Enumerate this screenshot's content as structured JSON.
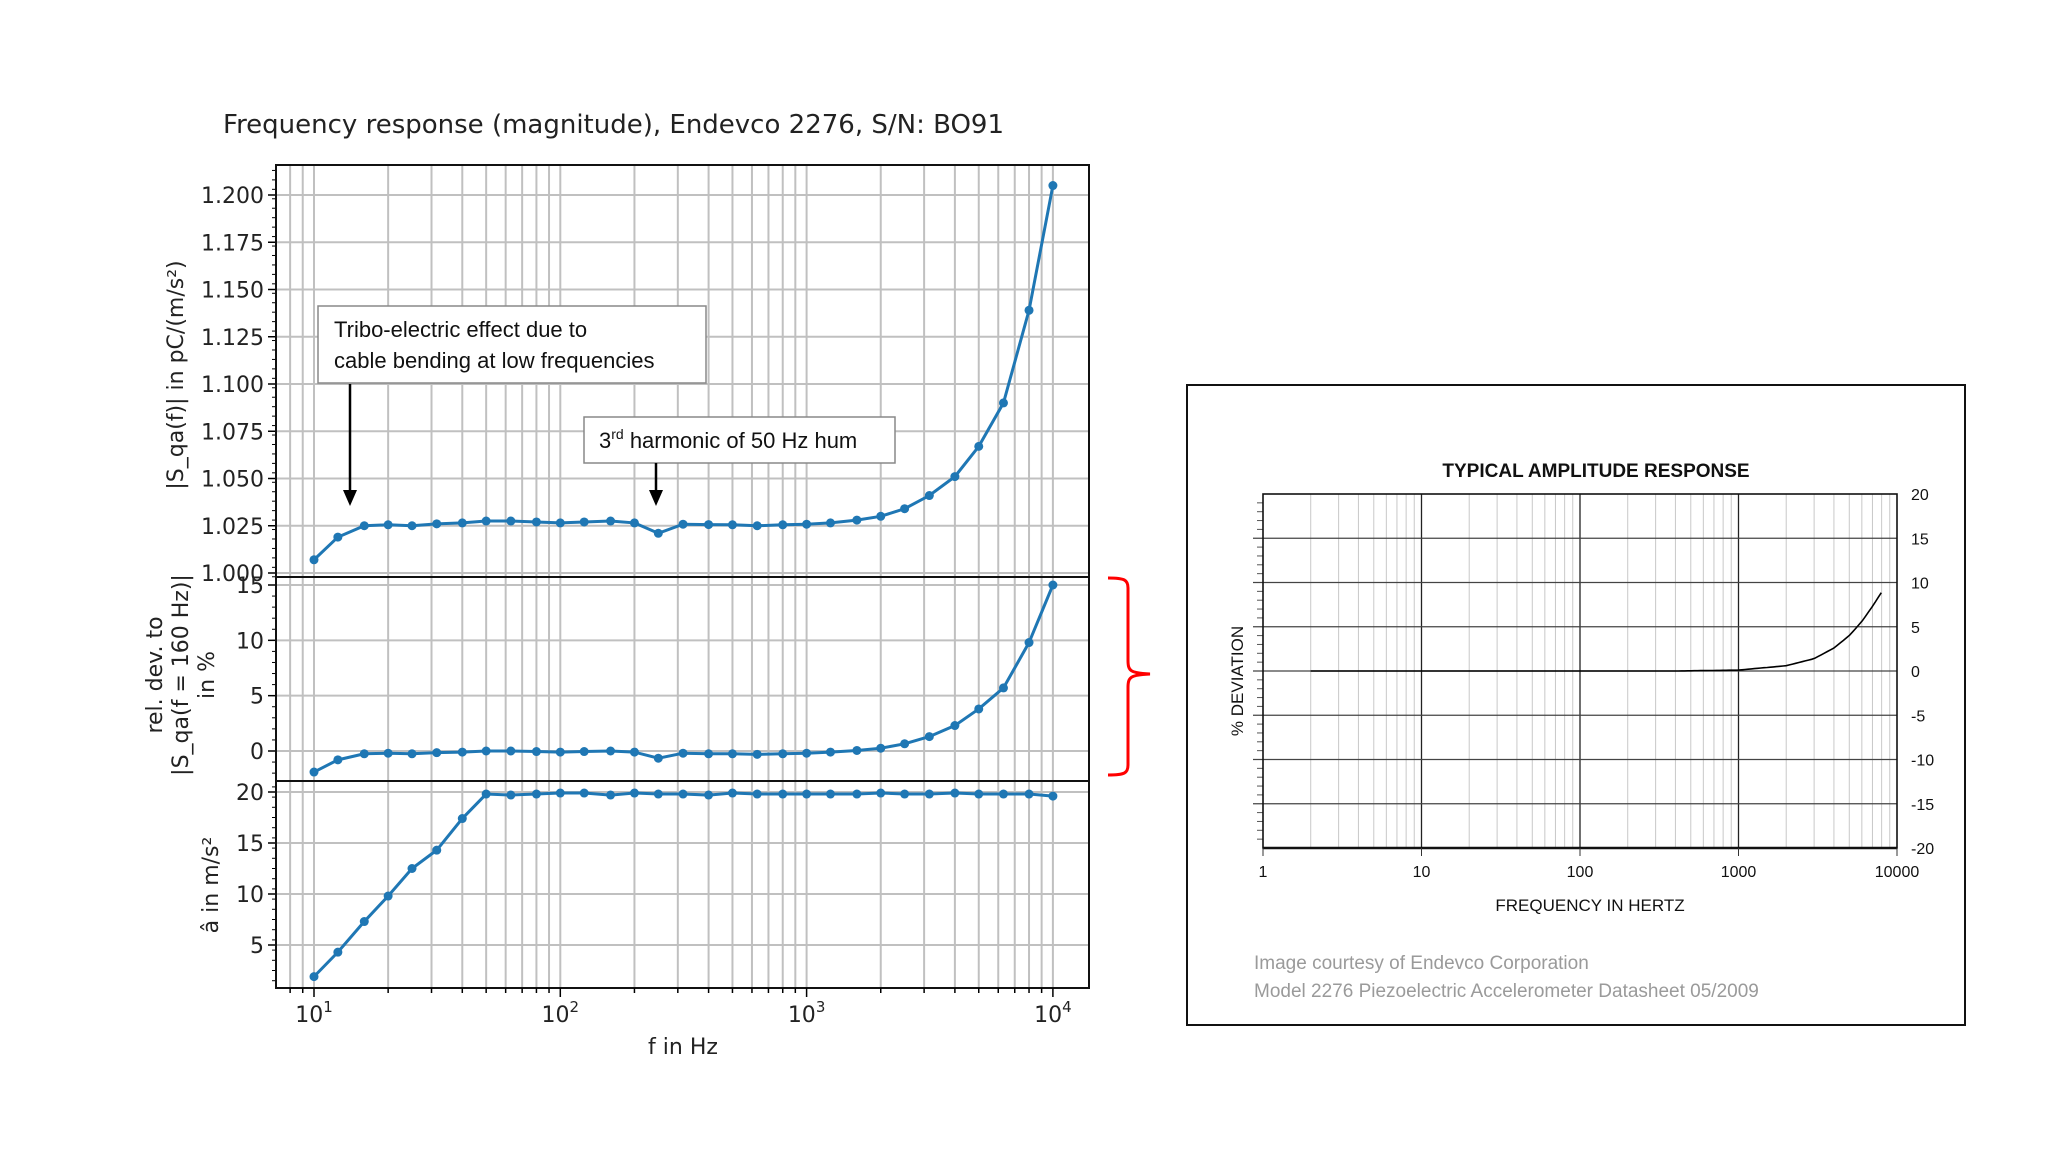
{
  "left_figure": {
    "title": "Frequency response (magnitude), Endevco 2276, S/N: BO91",
    "xlabel": "f in Hz",
    "xticks": [
      "10",
      "1",
      "10",
      "2",
      "10",
      "3",
      "10",
      "4"
    ],
    "xtick_labels": [
      {
        "base": "10",
        "exp": "1"
      },
      {
        "base": "10",
        "exp": "2"
      },
      {
        "base": "10",
        "exp": "3"
      },
      {
        "base": "10",
        "exp": "4"
      }
    ],
    "panel1": {
      "ylabel": "|S_qa(f)| in pC/(m/s²)",
      "yticks": [
        "1.000",
        "1.025",
        "1.050",
        "1.075",
        "1.100",
        "1.125",
        "1.150",
        "1.175",
        "1.200"
      ]
    },
    "panel2": {
      "ylabel_line1": "rel. dev. to",
      "ylabel_line2": "|S_qa(f = 160 Hz)|",
      "ylabel_line3": "in %",
      "yticks": [
        "0",
        "5",
        "10",
        "15"
      ]
    },
    "panel3": {
      "ylabel": "â in m/s²",
      "yticks": [
        "5",
        "10",
        "15",
        "20"
      ]
    },
    "annotation1": {
      "line1": "Tribo-electric effect due to",
      "line2": "cable bending at low frequencies"
    },
    "annotation2": {
      "prefix": "3",
      "sup": "rd",
      "suffix": " harmonic of 50 Hz hum"
    },
    "line_color": "#1f77b4",
    "bracket_color": "#ff0000"
  },
  "right_figure": {
    "title": "TYPICAL AMPLITUDE RESPONSE",
    "ylabel": "% DEVIATION",
    "xlabel": "FREQUENCY IN HERTZ",
    "xticks": [
      "1",
      "10",
      "100",
      "1000",
      "10000"
    ],
    "yticks": [
      "20",
      "15",
      "10",
      "5",
      "0",
      "-5",
      "-10",
      "-15",
      "-20"
    ],
    "credit_line1": "Image courtesy of Endevco Corporation",
    "credit_line2": "Model 2276 Piezoelectric Accelerometer Datasheet 05/2009"
  },
  "chart_data": [
    {
      "type": "line",
      "title": "Frequency response (magnitude), Endevco 2276, S/N: BO91",
      "xlabel": "f in Hz",
      "ylabel": "|S_qa(f)| in pC/(m/s²)",
      "xscale": "log",
      "ylim": [
        1.0,
        1.21
      ],
      "grid": true,
      "x": [
        10,
        12.5,
        16,
        20,
        25,
        31.5,
        40,
        50,
        63,
        80,
        100,
        125,
        160,
        200,
        250,
        315,
        400,
        500,
        630,
        800,
        1000,
        1250,
        1600,
        2000,
        2500,
        3150,
        4000,
        5000,
        6300,
        8000,
        10000
      ],
      "series": [
        {
          "name": "|S_qa(f)|",
          "values": [
            1.007,
            1.019,
            1.025,
            1.0255,
            1.025,
            1.026,
            1.0265,
            1.0275,
            1.0275,
            1.027,
            1.0265,
            1.027,
            1.0275,
            1.0265,
            1.021,
            1.0258,
            1.0256,
            1.0255,
            1.025,
            1.0255,
            1.0258,
            1.0265,
            1.028,
            1.03,
            1.034,
            1.041,
            1.051,
            1.067,
            1.09,
            1.139,
            1.205
          ]
        }
      ],
      "annotations": [
        "Tribo-electric effect due to cable bending at low frequencies (arrow at ~14 Hz)",
        "3rd harmonic of 50 Hz hum (arrow at ~250 Hz)"
      ]
    },
    {
      "type": "line",
      "xlabel": "f in Hz",
      "ylabel": "rel. dev. to |S_qa(f = 160 Hz)| in %",
      "xscale": "log",
      "ylim": [
        -2,
        15.5
      ],
      "grid": true,
      "x": [
        10,
        12.5,
        16,
        20,
        25,
        31.5,
        40,
        50,
        63,
        80,
        100,
        125,
        160,
        200,
        250,
        315,
        400,
        500,
        630,
        800,
        1000,
        1250,
        1600,
        2000,
        2500,
        3150,
        4000,
        5000,
        6300,
        8000,
        10000
      ],
      "series": [
        {
          "name": "relative deviation %",
          "values": [
            -1.9,
            -0.8,
            -0.25,
            -0.2,
            -0.25,
            -0.15,
            -0.1,
            0.0,
            0.0,
            -0.05,
            -0.1,
            -0.05,
            0.0,
            -0.1,
            -0.65,
            -0.2,
            -0.25,
            -0.25,
            -0.3,
            -0.25,
            -0.2,
            -0.1,
            0.05,
            0.25,
            0.65,
            1.3,
            2.3,
            3.8,
            5.7,
            9.8,
            15.0
          ]
        }
      ]
    },
    {
      "type": "line",
      "xlabel": "f in Hz",
      "ylabel": "â in m/s²",
      "xscale": "log",
      "ylim": [
        1,
        21
      ],
      "grid": true,
      "x": [
        10,
        12.5,
        16,
        20,
        25,
        31.5,
        40,
        50,
        63,
        80,
        100,
        125,
        160,
        200,
        250,
        315,
        400,
        500,
        630,
        800,
        1000,
        1250,
        1600,
        2000,
        2500,
        3150,
        4000,
        5000,
        6300,
        8000,
        10000
      ],
      "series": [
        {
          "name": "acceleration amplitude",
          "values": [
            1.9,
            4.3,
            7.3,
            9.8,
            12.5,
            14.3,
            17.4,
            19.8,
            19.7,
            19.8,
            19.9,
            19.9,
            19.7,
            19.9,
            19.8,
            19.8,
            19.7,
            19.9,
            19.8,
            19.8,
            19.8,
            19.8,
            19.8,
            19.9,
            19.8,
            19.8,
            19.9,
            19.8,
            19.8,
            19.8,
            19.6
          ]
        }
      ]
    },
    {
      "type": "line",
      "title": "TYPICAL AMPLITUDE RESPONSE",
      "xlabel": "FREQUENCY IN HERTZ",
      "ylabel": "% DEVIATION",
      "xscale": "log",
      "xlim": [
        1,
        10000
      ],
      "ylim": [
        -20,
        20
      ],
      "grid": true,
      "x": [
        2,
        10,
        100,
        400,
        1000,
        2000,
        3000,
        4000,
        5000,
        6000,
        7000,
        8000
      ],
      "series": [
        {
          "name": "typical deviation",
          "values": [
            0,
            0,
            0,
            0,
            0.1,
            0.6,
            1.4,
            2.6,
            4.0,
            5.6,
            7.3,
            8.9
          ]
        }
      ]
    }
  ]
}
